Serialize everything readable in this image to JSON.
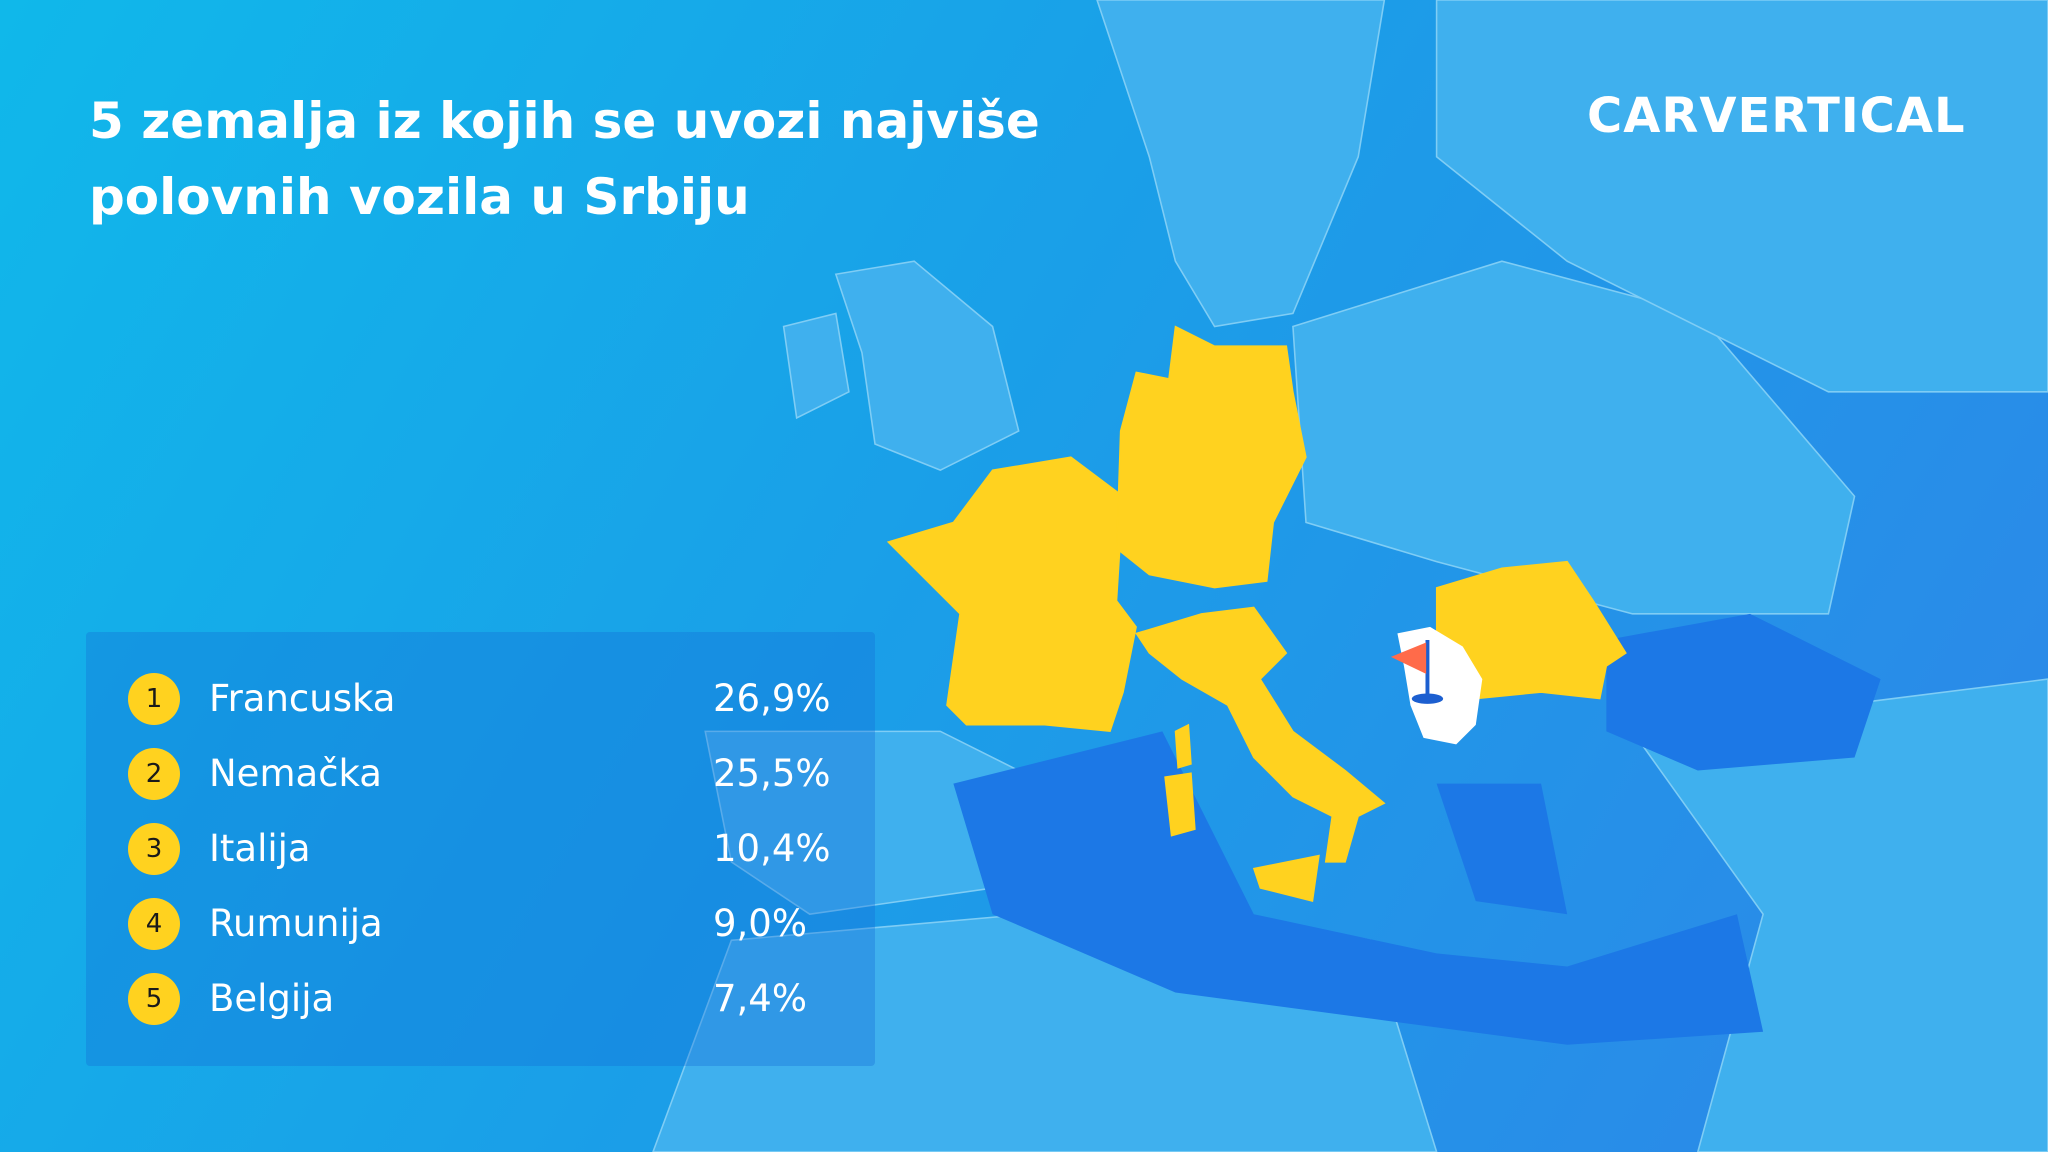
{
  "header": {
    "title_line1": "5 zemalja iz kojih se uvozi najviše",
    "title_line2": "polovnih vozila u Srbiju",
    "logo": "CARVERTICAL"
  },
  "table": {
    "rows": [
      {
        "rank": "1",
        "country": "Francuska",
        "share": "26,9%"
      },
      {
        "rank": "2",
        "country": "Nemačka",
        "share": "25,5%"
      },
      {
        "rank": "3",
        "country": "Italija",
        "share": "10,4%"
      },
      {
        "rank": "4",
        "country": "Rumunija",
        "share": "9,0%"
      },
      {
        "rank": "5",
        "country": "Belgija",
        "share": "7,4%"
      }
    ]
  }
}
